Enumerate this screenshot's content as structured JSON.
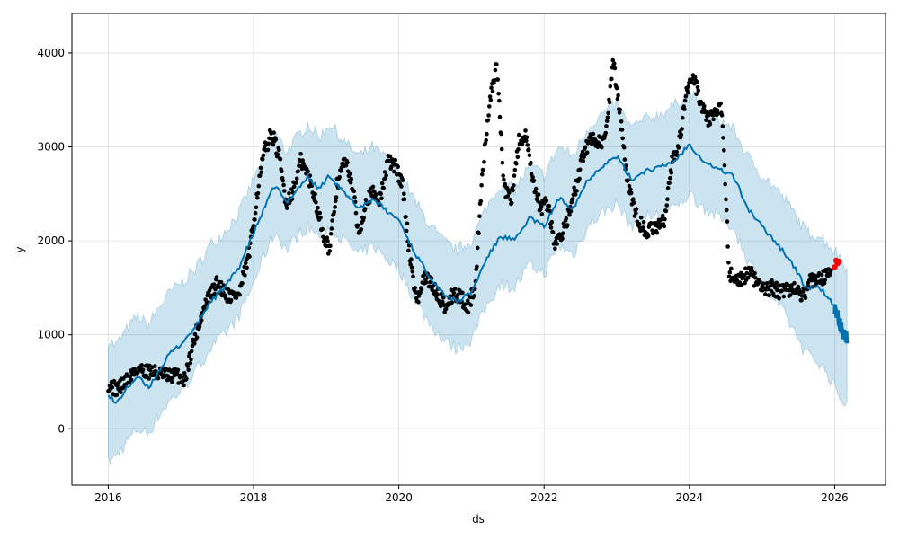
{
  "chart_data": {
    "type": "line",
    "xlabel": "ds",
    "ylabel": "y",
    "xlim": [
      2015.5,
      2026.7
    ],
    "ylim": [
      -600,
      4420
    ],
    "x_ticks": [
      2016,
      2018,
      2020,
      2022,
      2024,
      2026
    ],
    "x_tick_labels": [
      "2016",
      "2018",
      "2020",
      "2022",
      "2024",
      "2026"
    ],
    "y_ticks": [
      0,
      1000,
      2000,
      3000,
      4000
    ],
    "y_tick_labels": [
      "0",
      "1000",
      "2000",
      "3000",
      "4000"
    ],
    "grid": true,
    "colors": {
      "forecast_line": "#0072B2",
      "interval_fill": "#0072B2",
      "observed_points": "#000000",
      "recent_points": "#FF0000"
    },
    "series": [
      {
        "kind": "forecast",
        "x": [
          2016.0,
          2016.1,
          2016.25,
          2016.4,
          2016.55,
          2016.7,
          2016.85,
          2017.0,
          2017.2,
          2017.4,
          2017.6,
          2017.8,
          2018.0,
          2018.15,
          2018.3,
          2018.45,
          2018.6,
          2018.75,
          2018.9,
          2019.05,
          2019.25,
          2019.45,
          2019.65,
          2019.85,
          2020.0,
          2020.2,
          2020.4,
          2020.6,
          2020.8,
          2021.0,
          2021.2,
          2021.4,
          2021.6,
          2021.8,
          2022.0,
          2022.2,
          2022.4,
          2022.6,
          2022.8,
          2023.0,
          2023.2,
          2023.4,
          2023.6,
          2023.8,
          2024.0,
          2024.2,
          2024.4,
          2024.6,
          2024.8,
          2025.0,
          2025.2,
          2025.4,
          2025.6,
          2025.8,
          2026.0,
          2026.1,
          2026.17
        ],
        "values": [
          380,
          260,
          420,
          560,
          430,
          620,
          800,
          900,
          1080,
          1350,
          1500,
          1720,
          2080,
          2350,
          2600,
          2400,
          2550,
          2680,
          2550,
          2700,
          2500,
          2350,
          2450,
          2300,
          2230,
          1900,
          1650,
          1450,
          1350,
          1450,
          1800,
          2050,
          2000,
          2250,
          2150,
          2450,
          2350,
          2650,
          2800,
          2900,
          2650,
          2750,
          2780,
          2850,
          3030,
          2850,
          2760,
          2700,
          2350,
          2150,
          1980,
          1780,
          1500,
          1500,
          1300,
          1050,
          950
        ],
        "lower": [
          -350,
          -300,
          -150,
          0,
          -50,
          150,
          300,
          400,
          600,
          850,
          1000,
          1200,
          1550,
          1850,
          2100,
          1900,
          2050,
          2150,
          2050,
          2150,
          2000,
          1850,
          1950,
          1800,
          1700,
          1400,
          1150,
          950,
          850,
          950,
          1300,
          1550,
          1500,
          1750,
          1650,
          1950,
          1850,
          2150,
          2300,
          2400,
          2150,
          2250,
          2280,
          2350,
          2500,
          2350,
          2250,
          2150,
          1800,
          1550,
          1350,
          1100,
          800,
          700,
          450,
          300,
          270
        ],
        "upper": [
          950,
          880,
          1050,
          1200,
          1100,
          1300,
          1450,
          1550,
          1700,
          1950,
          2100,
          2300,
          2650,
          2900,
          3150,
          2950,
          3100,
          3250,
          3100,
          3250,
          3050,
          2900,
          3000,
          2850,
          2750,
          2450,
          2200,
          2000,
          1900,
          2000,
          2350,
          2600,
          2550,
          2800,
          2700,
          3000,
          2900,
          3200,
          3350,
          3450,
          3200,
          3300,
          3350,
          3450,
          3600,
          3400,
          3300,
          3200,
          2900,
          2700,
          2550,
          2350,
          2100,
          2050,
          1900,
          1800,
          1700
        ]
      },
      {
        "kind": "observed",
        "x": [
          2016.0,
          2016.1,
          2016.2,
          2016.3,
          2016.4,
          2016.5,
          2016.65,
          2016.8,
          2016.95,
          2017.05,
          2017.2,
          2017.35,
          2017.5,
          2017.65,
          2017.8,
          2017.95,
          2018.05,
          2018.15,
          2018.25,
          2018.35,
          2018.45,
          2018.55,
          2018.65,
          2018.75,
          2018.85,
          2018.95,
          2019.05,
          2019.15,
          2019.25,
          2019.35,
          2019.45,
          2019.55,
          2019.65,
          2019.75,
          2019.85,
          2019.95,
          2020.05,
          2020.15,
          2020.25,
          2020.35,
          2020.45,
          2020.55,
          2020.65,
          2020.75,
          2020.85,
          2020.95,
          2021.05,
          2021.15,
          2021.25,
          2021.35,
          2021.45,
          2021.55,
          2021.65,
          2021.75,
          2021.85,
          2021.95,
          2022.05,
          2022.15,
          2022.25,
          2022.35,
          2022.45,
          2022.55,
          2022.65,
          2022.75,
          2022.85,
          2022.95,
          2023.05,
          2023.15,
          2023.25,
          2023.35,
          2023.45,
          2023.55,
          2023.65,
          2023.75,
          2023.85,
          2023.95,
          2024.05,
          2024.15,
          2024.25,
          2024.35,
          2024.45,
          2024.55,
          2024.65,
          2024.75,
          2024.85,
          2024.95,
          2025.05,
          2025.15,
          2025.25,
          2025.35,
          2025.45,
          2025.55,
          2025.65,
          2025.75,
          2025.85,
          2025.95
        ],
        "values": [
          480,
          420,
          470,
          560,
          640,
          620,
          600,
          560,
          570,
          520,
          1000,
          1350,
          1550,
          1420,
          1420,
          1900,
          2500,
          2950,
          3150,
          2900,
          2400,
          2550,
          2850,
          2700,
          2450,
          2100,
          1900,
          2600,
          2850,
          2650,
          2050,
          2450,
          2500,
          2450,
          2850,
          2800,
          2600,
          1850,
          1350,
          1600,
          1550,
          1400,
          1300,
          1450,
          1400,
          1300,
          1500,
          2700,
          3500,
          3850,
          2550,
          2450,
          3050,
          3100,
          2600,
          2350,
          2400,
          1950,
          2100,
          2300,
          2600,
          2950,
          3100,
          3050,
          3100,
          3950,
          3300,
          2600,
          2300,
          2150,
          2100,
          2150,
          2200,
          2800,
          3000,
          3550,
          3750,
          3500,
          3300,
          3350,
          3400,
          1650,
          1580,
          1620,
          1650,
          1520,
          1480,
          1500,
          1460,
          1490,
          1480,
          1400,
          1550,
          1590,
          1620,
          1630
        ]
      },
      {
        "kind": "recent",
        "x": [
          2026.0,
          2026.02,
          2026.04,
          2026.06
        ],
        "values": [
          1720,
          1790,
          1760,
          1780
        ]
      }
    ]
  }
}
